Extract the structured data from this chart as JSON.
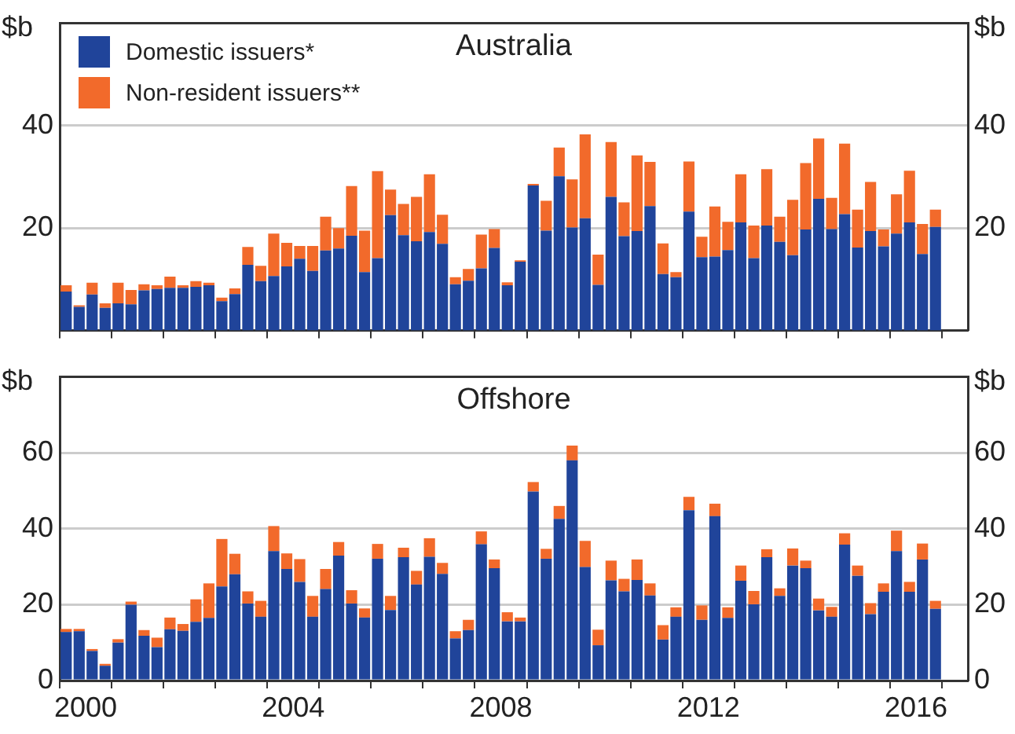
{
  "chart_data": [
    {
      "type": "bar",
      "title": "Australia",
      "ylabel": "$b",
      "y2label": "$b",
      "stacked": true,
      "legend": "top left",
      "grid": "y",
      "tick_labels": "y",
      "x": [
        2000.125,
        2000.375,
        2000.625,
        2000.875,
        2001.125,
        2001.375,
        2001.625,
        2001.875,
        2002.125,
        2002.375,
        2002.625,
        2002.875,
        2003.125,
        2003.375,
        2003.625,
        2003.875,
        2004.125,
        2004.375,
        2004.625,
        2004.875,
        2005.125,
        2005.375,
        2005.625,
        2005.875,
        2006.125,
        2006.375,
        2006.625,
        2006.875,
        2007.125,
        2007.375,
        2007.625,
        2007.875,
        2008.125,
        2008.375,
        2008.625,
        2008.875,
        2009.125,
        2009.375,
        2009.625,
        2009.875,
        2010.125,
        2010.375,
        2010.625,
        2010.875,
        2011.125,
        2011.375,
        2011.625,
        2011.875,
        2012.125,
        2012.375,
        2012.625,
        2012.875,
        2013.125,
        2013.375,
        2013.625,
        2013.875,
        2014.125,
        2014.375,
        2014.625,
        2014.875,
        2015.125,
        2015.375,
        2015.625,
        2015.875,
        2016.125,
        2016.375,
        2016.625,
        2016.875
      ],
      "xlim": [
        2000,
        2017.5
      ],
      "xticks": [
        {
          "value": 2000,
          "label": null
        },
        {
          "value": 2001,
          "label": null
        },
        {
          "value": 2002,
          "label": null
        },
        {
          "value": 2003,
          "label": null
        },
        {
          "value": 2004,
          "label": null
        },
        {
          "value": 2005,
          "label": null
        },
        {
          "value": 2006,
          "label": null
        },
        {
          "value": 2007,
          "label": null
        },
        {
          "value": 2008,
          "label": null
        },
        {
          "value": 2009,
          "label": null
        },
        {
          "value": 2010,
          "label": null
        },
        {
          "value": 2011,
          "label": null
        },
        {
          "value": 2012,
          "label": null
        },
        {
          "value": 2013,
          "label": null
        },
        {
          "value": 2014,
          "label": null
        },
        {
          "value": 2015,
          "label": null
        },
        {
          "value": 2016,
          "label": null
        },
        {
          "value": 2017,
          "label": null
        }
      ],
      "ylim": [
        0,
        60
      ],
      "yticks": [
        20,
        40
      ],
      "y2lim": [
        0,
        60
      ],
      "y2ticks": [
        20,
        40
      ],
      "series": [
        {
          "name": "Domestic issuers*",
          "color": "#20449a",
          "values": [
            7.6,
            4.6,
            7.0,
            4.4,
            5.3,
            5.1,
            7.8,
            8.1,
            8.3,
            8.3,
            8.5,
            8.8,
            5.7,
            7.1,
            12.8,
            9.6,
            10.6,
            12.5,
            14.0,
            11.6,
            15.6,
            16.0,
            18.5,
            11.4,
            14.1,
            22.5,
            18.6,
            17.4,
            19.2,
            16.9,
            9.0,
            9.7,
            12.1,
            16.1,
            8.8,
            13.4,
            28.3,
            19.5,
            30.1,
            20.1,
            21.9,
            8.9,
            26.1,
            18.4,
            19.4,
            24.3,
            11.0,
            10.4,
            23.2,
            14.3,
            14.4,
            15.7,
            21.1,
            14.1,
            20.5,
            17.3,
            14.7,
            19.7,
            25.7,
            19.8,
            22.7,
            16.2,
            19.4,
            16.4,
            18.9,
            21.1,
            14.9,
            20.2
          ]
        },
        {
          "name": "Non-resident issuers**",
          "color": "#f26a2b",
          "values": [
            1.2,
            0.3,
            2.3,
            0.9,
            4.0,
            2.8,
            1.2,
            0.7,
            2.2,
            0.5,
            1.1,
            0.5,
            0.7,
            1.1,
            3.5,
            3.0,
            8.3,
            4.6,
            2.5,
            4.9,
            6.6,
            4.0,
            9.7,
            8.1,
            17.0,
            5.0,
            6.1,
            8.7,
            11.3,
            5.7,
            1.4,
            2.3,
            6.6,
            3.7,
            0.6,
            0.3,
            0.3,
            5.8,
            5.6,
            9.4,
            16.4,
            5.9,
            10.7,
            6.6,
            14.8,
            8.6,
            6.0,
            1.0,
            9.8,
            4.0,
            9.8,
            5.5,
            9.4,
            6.4,
            11.0,
            4.9,
            10.8,
            13.0,
            11.8,
            6.1,
            13.8,
            7.4,
            9.6,
            3.3,
            7.7,
            10.1,
            5.9,
            3.4
          ]
        }
      ]
    },
    {
      "type": "bar",
      "title": "Offshore",
      "ylabel": "$b",
      "y2label": "$b",
      "stacked": true,
      "grid": "y",
      "x": [
        2000.125,
        2000.375,
        2000.625,
        2000.875,
        2001.125,
        2001.375,
        2001.625,
        2001.875,
        2002.125,
        2002.375,
        2002.625,
        2002.875,
        2003.125,
        2003.375,
        2003.625,
        2003.875,
        2004.125,
        2004.375,
        2004.625,
        2004.875,
        2005.125,
        2005.375,
        2005.625,
        2005.875,
        2006.125,
        2006.375,
        2006.625,
        2006.875,
        2007.125,
        2007.375,
        2007.625,
        2007.875,
        2008.125,
        2008.375,
        2008.625,
        2008.875,
        2009.125,
        2009.375,
        2009.625,
        2009.875,
        2010.125,
        2010.375,
        2010.625,
        2010.875,
        2011.125,
        2011.375,
        2011.625,
        2011.875,
        2012.125,
        2012.375,
        2012.625,
        2012.875,
        2013.125,
        2013.375,
        2013.625,
        2013.875,
        2014.125,
        2014.375,
        2014.625,
        2014.875,
        2015.125,
        2015.375,
        2015.625,
        2015.875,
        2016.125,
        2016.375,
        2016.625,
        2016.875
      ],
      "xlim": [
        2000,
        2017.5
      ],
      "xticks": [
        {
          "value": 2000,
          "label": null
        },
        {
          "value": 2000.5,
          "label": "2000"
        },
        {
          "value": 2001,
          "label": null
        },
        {
          "value": 2002,
          "label": null
        },
        {
          "value": 2003,
          "label": null
        },
        {
          "value": 2004,
          "label": null
        },
        {
          "value": 2004.5,
          "label": "2004"
        },
        {
          "value": 2005,
          "label": null
        },
        {
          "value": 2006,
          "label": null
        },
        {
          "value": 2007,
          "label": null
        },
        {
          "value": 2008,
          "label": null
        },
        {
          "value": 2008.5,
          "label": "2008"
        },
        {
          "value": 2009,
          "label": null
        },
        {
          "value": 2010,
          "label": null
        },
        {
          "value": 2011,
          "label": null
        },
        {
          "value": 2012,
          "label": null
        },
        {
          "value": 2012.5,
          "label": "2012"
        },
        {
          "value": 2013,
          "label": null
        },
        {
          "value": 2014,
          "label": null
        },
        {
          "value": 2015,
          "label": null
        },
        {
          "value": 2016,
          "label": null
        },
        {
          "value": 2016.5,
          "label": "2016"
        },
        {
          "value": 2017,
          "label": null
        }
      ],
      "ylim": [
        0,
        80
      ],
      "yticks": [
        0,
        20,
        40,
        60
      ],
      "y2lim": [
        0,
        80
      ],
      "y2ticks": [
        0,
        20,
        40,
        60
      ],
      "series": [
        {
          "color": "#20449a",
          "values": [
            12.8,
            13.0,
            7.8,
            3.9,
            10.0,
            20.0,
            11.8,
            8.8,
            13.5,
            13.1,
            15.5,
            16.5,
            24.8,
            28.0,
            20.3,
            16.8,
            34.1,
            29.4,
            26.0,
            16.8,
            24.1,
            32.9,
            20.3,
            16.6,
            32.1,
            18.6,
            32.5,
            25.3,
            32.6,
            28.1,
            11.1,
            13.3,
            35.9,
            29.6,
            15.6,
            15.6,
            49.8,
            32.1,
            42.6,
            58.0,
            29.9,
            9.3,
            26.4,
            23.5,
            26.5,
            22.4,
            10.8,
            16.8,
            44.9,
            16.0,
            43.3,
            16.5,
            26.3,
            20.1,
            32.5,
            22.3,
            30.3,
            29.6,
            18.5,
            16.8,
            35.8,
            27.6,
            17.5,
            23.4,
            34.1,
            23.4,
            31.9,
            18.9
          ]
        },
        {
          "color": "#f26a2b",
          "values": [
            0.8,
            0.6,
            0.5,
            0.5,
            0.9,
            0.8,
            1.5,
            2.5,
            3.1,
            1.8,
            5.9,
            9.1,
            12.5,
            5.4,
            3.2,
            4.2,
            6.6,
            4.1,
            6.0,
            5.5,
            5.3,
            3.6,
            3.5,
            2.4,
            3.9,
            3.7,
            2.5,
            3.6,
            4.9,
            2.9,
            1.9,
            2.7,
            3.4,
            2.3,
            2.4,
            1.0,
            2.5,
            2.6,
            3.4,
            3.9,
            6.9,
            4.1,
            5.2,
            3.3,
            5.4,
            3.2,
            3.8,
            2.5,
            3.5,
            3.8,
            3.3,
            2.8,
            4.0,
            3.5,
            2.1,
            2.0,
            4.5,
            2.0,
            3.1,
            2.6,
            3.0,
            2.7,
            2.9,
            2.2,
            5.4,
            2.6,
            4.2,
            2.1
          ]
        }
      ]
    }
  ]
}
